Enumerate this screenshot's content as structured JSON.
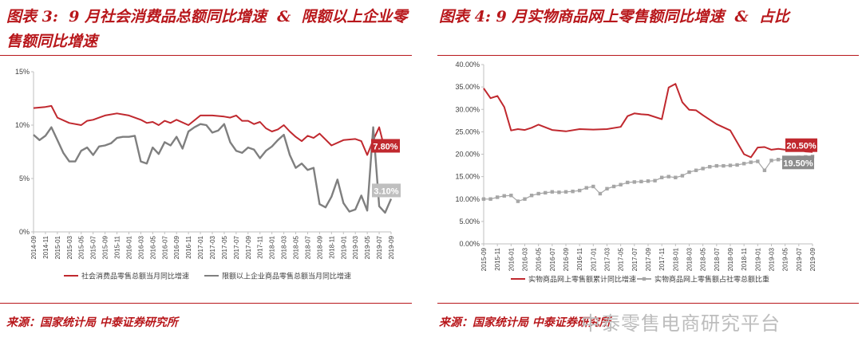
{
  "left": {
    "title": "图表 3:  9 月社会消费品总额同比增速  &  限额以上企业零售额同比增速",
    "source": "来源：国家统计局  中泰证券研究所"
  },
  "right": {
    "title": "图表 4: 9 月实物商品网上零售额同比增速  &  占比",
    "source": "来源：国家统计局  中泰证券研究所"
  },
  "watermark": "中泰零售电商研究平台",
  "colors": {
    "red": "#c0282e",
    "gray": "#7f7f7f",
    "marker": "#a6a6a6"
  },
  "chart_data": [
    {
      "type": "line",
      "ylim": [
        0,
        15
      ],
      "yticks": [
        "0%",
        "5%",
        "10%",
        "15%"
      ],
      "grid": false,
      "legend": "bottom",
      "x": [
        "2014-09",
        "2014-11",
        "2015-01",
        "2015-03",
        "2015-05",
        "2015-07",
        "2015-09",
        "2015-11",
        "2016-01",
        "2016-03",
        "2016-05",
        "2016-07",
        "2016-09",
        "2016-11",
        "2017-01",
        "2017-03",
        "2017-05",
        "2017-07",
        "2017-09",
        "2017-11",
        "2018-01",
        "2018-03",
        "2018-05",
        "2018-07",
        "2018-09",
        "2018-11",
        "2019-01",
        "2019-03",
        "2019-05",
        "2019-07",
        "2019-09"
      ],
      "series": [
        {
          "name": "社会消费品零售总额当月同比增速",
          "color": "#c0282e",
          "label": "7.80%",
          "x": [
            0,
            1,
            1.5,
            2,
            3,
            4,
            4.5,
            5,
            6,
            7,
            8,
            9,
            9.5,
            10,
            10.5,
            11,
            11.5,
            12,
            13,
            14,
            15,
            16,
            16.5,
            17,
            17.5,
            18,
            18.5,
            19,
            19.5,
            20,
            20.5,
            21,
            21.5,
            22,
            22.5,
            23,
            23.5,
            24,
            25,
            26,
            27,
            27.5,
            28,
            28.5,
            29,
            29.5,
            30
          ],
          "values": [
            11.6,
            11.7,
            11.8,
            10.7,
            10.2,
            10.0,
            10.4,
            10.5,
            10.9,
            11.1,
            10.9,
            10.5,
            10.2,
            10.3,
            10.0,
            10.4,
            10.2,
            10.5,
            10.0,
            10.9,
            10.9,
            10.8,
            10.7,
            10.9,
            10.4,
            10.4,
            10.1,
            10.3,
            9.7,
            9.4,
            9.6,
            10.0,
            9.4,
            8.9,
            8.5,
            9.0,
            8.8,
            9.2,
            8.1,
            8.6,
            8.7,
            8.5,
            7.2,
            8.6,
            9.8,
            7.6,
            7.8
          ]
        },
        {
          "name": "限额以上企业商品零售总额当月同比增速",
          "color": "#7f7f7f",
          "label": "3.10%",
          "x": [
            0,
            0.5,
            1,
            1.5,
            2,
            2.5,
            3,
            3.5,
            4,
            4.5,
            5,
            5.5,
            6,
            6.5,
            7,
            7.5,
            8,
            8.5,
            9,
            9.5,
            10,
            10.5,
            11,
            11.5,
            12,
            12.5,
            13,
            13.5,
            14,
            14.5,
            15,
            15.5,
            16,
            16.5,
            17,
            17.5,
            18,
            18.5,
            19,
            19.5,
            20,
            20.5,
            21,
            21.5,
            22,
            22.5,
            23,
            23.5,
            24,
            24.5,
            25,
            25.5,
            26,
            26.5,
            27,
            27.5,
            28,
            28.5,
            29,
            29.5,
            30
          ],
          "values": [
            9.1,
            8.6,
            9.0,
            9.8,
            8.6,
            7.4,
            6.6,
            6.6,
            7.6,
            7.9,
            7.2,
            8.0,
            8.1,
            8.3,
            8.8,
            8.9,
            8.9,
            9.0,
            6.6,
            6.4,
            7.9,
            7.3,
            8.4,
            8.1,
            8.9,
            7.8,
            9.4,
            9.8,
            10.1,
            10.0,
            9.3,
            9.5,
            10.1,
            8.4,
            7.6,
            7.4,
            7.9,
            7.7,
            6.9,
            7.6,
            8.0,
            8.6,
            9.1,
            7.2,
            6.0,
            6.4,
            5.8,
            6.0,
            2.6,
            2.3,
            3.3,
            4.9,
            2.7,
            1.9,
            2.1,
            3.4,
            2.0,
            9.8,
            2.4,
            1.8,
            3.1
          ]
        }
      ]
    },
    {
      "type": "line",
      "ylim": [
        0,
        40
      ],
      "yticks": [
        "0.00%",
        "5.00%",
        "10.00%",
        "15.00%",
        "20.00%",
        "25.00%",
        "30.00%",
        "35.00%",
        "40.00%"
      ],
      "grid": false,
      "legend": "bottom",
      "x": [
        "2015-09",
        "2015-11",
        "2016-01",
        "2016-03",
        "2016-05",
        "2016-07",
        "2016-09",
        "2016-11",
        "2017-01",
        "2017-03",
        "2017-05",
        "2017-07",
        "2017-09",
        "2017-11",
        "2018-01",
        "2018-03",
        "2018-05",
        "2018-07",
        "2018-09",
        "2018-11",
        "2019-01",
        "2019-03",
        "2019-05",
        "2019-07",
        "2019-09"
      ],
      "series": [
        {
          "name": "实物商品网上零售额累计同比增速",
          "color": "#c0282e",
          "label": "20.50%",
          "x": [
            0,
            0.5,
            1,
            1.5,
            2,
            2.5,
            3,
            3.5,
            4,
            5,
            6,
            7,
            8,
            9,
            10,
            10.5,
            11,
            11.5,
            12,
            13,
            13.5,
            14,
            14.5,
            15,
            15.5,
            16,
            17,
            18,
            19,
            19.5,
            20,
            20.5,
            21,
            21.5,
            22,
            22.5,
            23,
            23.5,
            24
          ],
          "values": [
            34.7,
            32.5,
            33.0,
            30.5,
            25.3,
            25.6,
            25.4,
            25.9,
            26.6,
            25.4,
            25.1,
            25.6,
            25.5,
            25.6,
            26.1,
            28.5,
            29.1,
            28.9,
            28.8,
            27.8,
            34.9,
            35.7,
            31.6,
            29.9,
            29.8,
            28.7,
            26.7,
            25.3,
            20.0,
            19.3,
            21.5,
            21.6,
            21.0,
            21.2,
            21.0,
            20.8,
            21.0,
            20.6,
            20.5
          ]
        },
        {
          "name": "实物商品网上零售额占社零总额比重",
          "color": "#a6a6a6",
          "label": "19.50%",
          "x": [
            0,
            0.5,
            1,
            1.5,
            2,
            2.5,
            3,
            3.5,
            4,
            4.5,
            5,
            5.5,
            6,
            6.5,
            7,
            7.5,
            8,
            8.5,
            9,
            9.5,
            10,
            10.5,
            11,
            11.5,
            12,
            12.5,
            13,
            13.5,
            14,
            14.5,
            15,
            15.5,
            16,
            16.5,
            17,
            17.5,
            18,
            18.5,
            19,
            19.5,
            20,
            20.5,
            21,
            21.5,
            22,
            22.5,
            23,
            23.5,
            24
          ],
          "values": [
            10.0,
            10.0,
            10.4,
            10.7,
            10.8,
            9.5,
            10.0,
            10.8,
            11.2,
            11.4,
            11.6,
            11.5,
            11.6,
            11.7,
            11.9,
            12.5,
            12.8,
            11.2,
            12.3,
            12.8,
            13.2,
            13.7,
            13.8,
            13.9,
            14.0,
            14.1,
            14.8,
            15.0,
            14.8,
            15.2,
            16.0,
            16.4,
            16.8,
            17.2,
            17.4,
            17.4,
            17.5,
            17.6,
            17.9,
            18.2,
            18.4,
            16.4,
            18.6,
            18.8,
            18.9,
            19.2,
            19.3,
            19.4,
            19.5
          ]
        }
      ]
    }
  ]
}
